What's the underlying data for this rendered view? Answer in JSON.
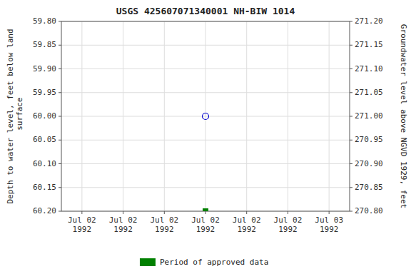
{
  "chart_data": {
    "type": "scatter",
    "title": "USGS 425607071340001 NH-BIW 1014",
    "ylabel": "Depth to water level, feet below land\n surface",
    "y2label": "Groundwater level above NGVD 1929, feet",
    "categories": [
      "Jul 02\n1992",
      "Jul 02\n1992",
      "Jul 02\n1992",
      "Jul 02\n1992",
      "Jul 02\n1992",
      "Jul 02\n1992",
      "Jul 03\n1992"
    ],
    "series": [
      {
        "color": "#0000cc",
        "marker": "circle-open",
        "values": [
          null,
          null,
          null,
          60.0,
          null,
          null,
          null
        ]
      },
      {
        "name": "Period of approved data",
        "color": "#008000",
        "marker": "square",
        "values": [
          null,
          null,
          null,
          60.2,
          null,
          null,
          null
        ]
      }
    ],
    "ylim": [
      60.2,
      59.8
    ],
    "yticks": [
      {
        "value": 59.8,
        "label": "59.80"
      },
      59.85,
      {
        "value": 59.9,
        "label": "59.90"
      },
      59.95,
      {
        "value": 60.0,
        "label": "60.00"
      },
      60.05,
      {
        "value": 60.1,
        "label": "60.10"
      },
      60.15,
      {
        "value": 60.2,
        "label": "60.20"
      }
    ],
    "y2lim": [
      270.8,
      271.2
    ],
    "y2ticks": [
      {
        "value": 271.2,
        "label": "271.20"
      },
      271.15,
      {
        "value": 271.1,
        "label": "271.10"
      },
      271.05,
      {
        "value": 271.0,
        "label": "271.00"
      },
      270.95,
      {
        "value": 270.9,
        "label": "270.90"
      },
      270.85,
      {
        "value": 270.8,
        "label": "270.80"
      }
    ],
    "grid": true,
    "legend": "bottom"
  }
}
